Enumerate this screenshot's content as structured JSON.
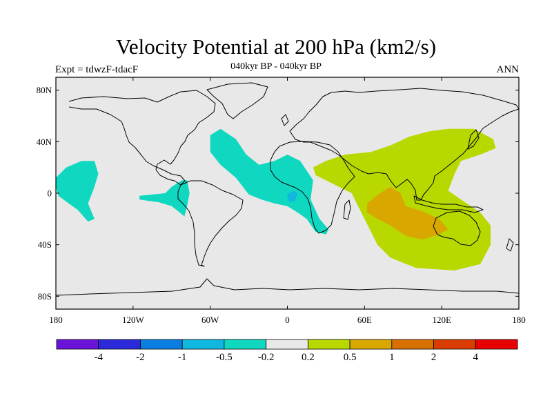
{
  "title": "Velocity Potential at 200 hPa (km2/s)",
  "subtitle": "040kyr BP - 040kyr BP",
  "left_label": "Expt = tdwzF-tdacF",
  "right_label": "ANN",
  "chart_data": {
    "type": "map-contour",
    "projection": "cylindrical-equidistant",
    "lon_range": [
      -180,
      180
    ],
    "lat_range": [
      -90,
      90
    ],
    "lon_ticks": [
      {
        "value": -180,
        "label": "180"
      },
      {
        "value": -120,
        "label": "120W"
      },
      {
        "value": -60,
        "label": "60W"
      },
      {
        "value": 0,
        "label": "0"
      },
      {
        "value": 60,
        "label": "60E"
      },
      {
        "value": 120,
        "label": "120E"
      },
      {
        "value": 180,
        "label": "180"
      }
    ],
    "lat_ticks": [
      {
        "value": 80,
        "label": "80N"
      },
      {
        "value": 40,
        "label": "40N"
      },
      {
        "value": 0,
        "label": "0"
      },
      {
        "value": -40,
        "label": "40S"
      },
      {
        "value": -80,
        "label": "80S"
      }
    ],
    "colorbar": {
      "colors": [
        "#6a14d8",
        "#2a2ad8",
        "#0a7ee0",
        "#10b8e0",
        "#10d8c0",
        "#e8e8e8",
        "#b8d800",
        "#d8a800",
        "#d87000",
        "#d83c00",
        "#e80000"
      ],
      "labels": [
        "-4",
        "-2",
        "-1",
        "-0.5",
        "-0.2",
        "0.2",
        "0.5",
        "1",
        "2",
        "4"
      ]
    },
    "regions": [
      {
        "name": "central-pacific-negative",
        "level": "-0.5 to -0.2",
        "color": "#10d8c0",
        "points": [
          [
            -180,
            12
          ],
          [
            -172,
            20
          ],
          [
            -160,
            25
          ],
          [
            -150,
            25
          ],
          [
            -147,
            15
          ],
          [
            -150,
            5
          ],
          [
            -155,
            -8
          ],
          [
            -150,
            -20
          ],
          [
            -155,
            -22
          ],
          [
            -163,
            -13
          ],
          [
            -170,
            -8
          ],
          [
            -178,
            -2
          ],
          [
            -180,
            5
          ]
        ]
      },
      {
        "name": "south-america-negative",
        "level": "-0.5 to -0.2",
        "color": "#10d8c0",
        "points": [
          [
            -115,
            -2
          ],
          [
            -105,
            -1
          ],
          [
            -95,
            0
          ],
          [
            -90,
            5
          ],
          [
            -82,
            10
          ],
          [
            -78,
            10
          ],
          [
            -76,
            0
          ],
          [
            -78,
            -10
          ],
          [
            -80,
            -18
          ],
          [
            -90,
            -10
          ],
          [
            -100,
            -7
          ],
          [
            -115,
            -5
          ]
        ]
      },
      {
        "name": "atlantic-negative",
        "level": "-0.5 to -0.2",
        "color": "#10d8c0",
        "points": [
          [
            -60,
            45
          ],
          [
            -52,
            50
          ],
          [
            -40,
            42
          ],
          [
            -32,
            30
          ],
          [
            -22,
            22
          ],
          [
            -10,
            25
          ],
          [
            0,
            30
          ],
          [
            10,
            25
          ],
          [
            20,
            10
          ],
          [
            18,
            -5
          ],
          [
            25,
            -20
          ],
          [
            32,
            -28
          ],
          [
            30,
            -32
          ],
          [
            22,
            -30
          ],
          [
            15,
            -20
          ],
          [
            8,
            -15
          ],
          [
            0,
            -10
          ],
          [
            -10,
            -8
          ],
          [
            -20,
            -5
          ],
          [
            -30,
            -1
          ],
          [
            -40,
            12
          ],
          [
            -52,
            22
          ],
          [
            -60,
            32
          ]
        ]
      },
      {
        "name": "gulf-of-guinea-negative",
        "level": "-1 to -0.5",
        "color": "#10b8e0",
        "points": [
          [
            0,
            -1
          ],
          [
            5,
            2
          ],
          [
            8,
            0
          ],
          [
            6,
            -6
          ],
          [
            2,
            -7
          ],
          [
            0,
            -4
          ]
        ]
      },
      {
        "name": "indo-pacific-positive",
        "level": "0.2 to 0.5",
        "color": "#b8d800",
        "points": [
          [
            20,
            20
          ],
          [
            30,
            25
          ],
          [
            45,
            30
          ],
          [
            65,
            32
          ],
          [
            80,
            37
          ],
          [
            95,
            44
          ],
          [
            110,
            48
          ],
          [
            125,
            50
          ],
          [
            145,
            50
          ],
          [
            160,
            42
          ],
          [
            162,
            35
          ],
          [
            150,
            30
          ],
          [
            135,
            25
          ],
          [
            130,
            15
          ],
          [
            125,
            2
          ],
          [
            135,
            -5
          ],
          [
            150,
            -15
          ],
          [
            158,
            -25
          ],
          [
            158,
            -40
          ],
          [
            150,
            -55
          ],
          [
            130,
            -60
          ],
          [
            100,
            -58
          ],
          [
            80,
            -50
          ],
          [
            70,
            -40
          ],
          [
            65,
            -30
          ],
          [
            60,
            -20
          ],
          [
            55,
            -10
          ],
          [
            50,
            0
          ],
          [
            40,
            5
          ],
          [
            30,
            10
          ],
          [
            22,
            14
          ]
        ]
      },
      {
        "name": "indian-ocean-positive",
        "level": "0.5 to 1",
        "color": "#d8a800",
        "points": [
          [
            62,
            -8
          ],
          [
            72,
            0
          ],
          [
            80,
            5
          ],
          [
            88,
            0
          ],
          [
            92,
            -10
          ],
          [
            105,
            -14
          ],
          [
            118,
            -20
          ],
          [
            125,
            -28
          ],
          [
            118,
            -32
          ],
          [
            105,
            -36
          ],
          [
            92,
            -33
          ],
          [
            80,
            -25
          ],
          [
            70,
            -20
          ],
          [
            62,
            -15
          ]
        ]
      }
    ]
  }
}
